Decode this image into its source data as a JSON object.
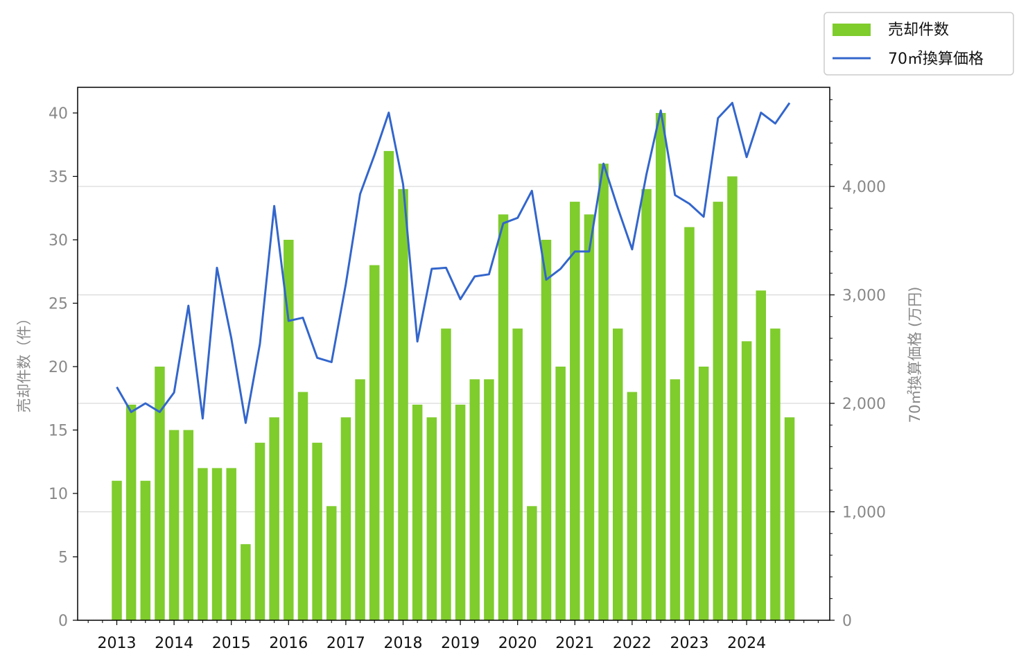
{
  "chart_data": {
    "type": "bar",
    "x_tick_labels": [
      "2013",
      "2014",
      "2015",
      "2016",
      "2017",
      "2018",
      "2019",
      "2020",
      "2021",
      "2022",
      "2023",
      "2024"
    ],
    "left_axis": {
      "label": "売却件数（件）",
      "ylim": [
        0,
        42
      ],
      "ticks": [
        0,
        5,
        10,
        15,
        20,
        25,
        30,
        35,
        40
      ]
    },
    "right_axis": {
      "label": "70㎡換算価格 (万円)",
      "ylim": [
        0,
        4900
      ],
      "ticks": [
        0,
        1000,
        2000,
        3000,
        4000
      ],
      "tick_labels": [
        "0",
        "1,000",
        "2,000",
        "3,000",
        "4,000"
      ]
    },
    "grid": "horizontal, right axis",
    "legend": {
      "position": "top-right outside",
      "entries": [
        "売却件数",
        "70㎡換算価格"
      ]
    },
    "colors": {
      "bar": "#7fcc2d",
      "line": "#3366cc",
      "grid": "#d9d9d9"
    },
    "series": [
      {
        "name": "売却件数",
        "type": "bar",
        "axis": "left",
        "values": [
          11,
          17,
          11,
          20,
          15,
          15,
          12,
          12,
          12,
          6,
          14,
          16,
          30,
          18,
          14,
          9,
          16,
          19,
          28,
          37,
          34,
          17,
          16,
          23,
          17,
          19,
          19,
          32,
          23,
          9,
          30,
          20,
          33,
          32,
          36,
          23,
          18,
          34,
          40,
          19,
          31,
          20,
          33,
          35,
          22,
          26,
          23,
          16
        ]
      },
      {
        "name": "70㎡換算価格",
        "type": "line",
        "axis": "right",
        "values": [
          2150,
          1920,
          2000,
          1920,
          2100,
          2900,
          1860,
          3250,
          2600,
          1820,
          2550,
          3820,
          2760,
          2790,
          2420,
          2380,
          3100,
          3930,
          4290,
          4680,
          4020,
          2570,
          3240,
          3250,
          2960,
          3170,
          3190,
          3660,
          3710,
          3960,
          3140,
          3240,
          3400,
          3400,
          4210,
          3800,
          3420,
          4110,
          4700,
          3920,
          3840,
          3720,
          4630,
          4770,
          4270,
          4680,
          4580,
          4770
        ]
      }
    ]
  }
}
